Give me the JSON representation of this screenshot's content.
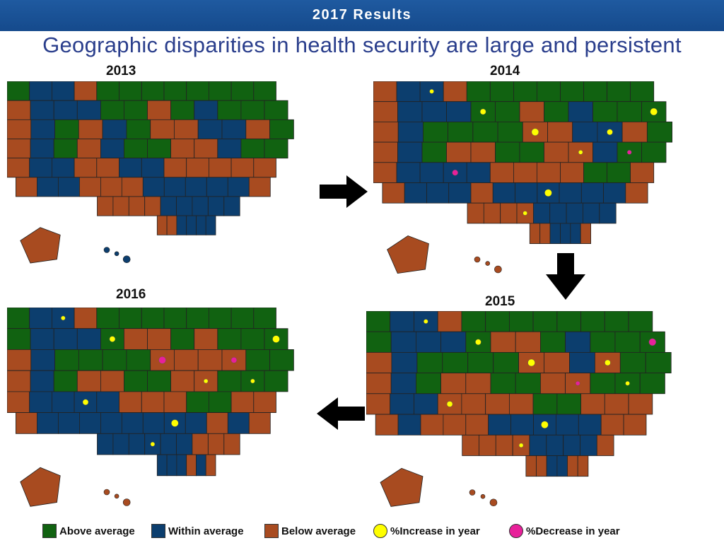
{
  "header": {
    "title": "2017 Results"
  },
  "subtitle": "Geographic disparities in health security are large and persistent",
  "colors": {
    "above": "#116211",
    "within": "#0c3e6e",
    "below": "#a84b20",
    "increase": "#ffff00",
    "decrease": "#e8209a"
  },
  "panels": [
    {
      "year": "2013",
      "grid": [
        [
          "G",
          "B",
          "B",
          "N",
          "G",
          "G",
          "G",
          "G",
          "G",
          "G",
          "G",
          "G"
        ],
        [
          "N",
          "B",
          "B",
          "B",
          "G",
          "G",
          "N",
          "G",
          "B",
          "G",
          "G",
          "G"
        ],
        [
          "N",
          "B",
          "G",
          "N",
          "B",
          "G",
          "N",
          "N",
          "B",
          "B",
          "N",
          "G"
        ],
        [
          "N",
          "B",
          "G",
          "N",
          "B",
          "G",
          "G",
          "N",
          "N",
          "B",
          "G",
          "G"
        ],
        [
          "N",
          "B",
          "B",
          "N",
          "N",
          "B",
          "B",
          "N",
          "N",
          "N",
          "N",
          "N"
        ],
        [
          "N",
          "B",
          "B",
          "N",
          "N",
          "N",
          "B",
          "B",
          "B",
          "B",
          "B",
          "N"
        ],
        [
          "",
          "",
          "N",
          "N",
          "N",
          "N",
          "B",
          "B",
          "B",
          "B",
          "B",
          ""
        ],
        [
          "",
          "",
          "",
          "",
          "N",
          "N",
          "B",
          "B",
          "B",
          "B",
          "",
          ""
        ]
      ]
    },
    {
      "year": "2014",
      "grid": [
        [
          "N",
          "B",
          "B",
          "N",
          "G",
          "G",
          "G",
          "G",
          "G",
          "G",
          "G",
          "G"
        ],
        [
          "N",
          "B",
          "B",
          "B",
          "G",
          "G",
          "N",
          "G",
          "B",
          "G",
          "G",
          "G"
        ],
        [
          "N",
          "B",
          "G",
          "G",
          "G",
          "G",
          "N",
          "N",
          "B",
          "B",
          "N",
          "G"
        ],
        [
          "N",
          "B",
          "G",
          "N",
          "N",
          "G",
          "G",
          "N",
          "N",
          "B",
          "G",
          "G"
        ],
        [
          "N",
          "B",
          "B",
          "B",
          "B",
          "N",
          "N",
          "N",
          "N",
          "G",
          "G",
          "N"
        ],
        [
          "N",
          "B",
          "B",
          "B",
          "N",
          "B",
          "B",
          "B",
          "B",
          "B",
          "B",
          "N"
        ],
        [
          "",
          "",
          "N",
          "N",
          "N",
          "N",
          "B",
          "B",
          "B",
          "B",
          "B",
          ""
        ],
        [
          "",
          "",
          "",
          "",
          "N",
          "N",
          "B",
          "B",
          "B",
          "N",
          "",
          ""
        ]
      ]
    },
    {
      "year": "2015",
      "grid": [
        [
          "G",
          "B",
          "B",
          "N",
          "G",
          "G",
          "G",
          "G",
          "G",
          "G",
          "G",
          "G"
        ],
        [
          "G",
          "B",
          "B",
          "B",
          "G",
          "N",
          "N",
          "G",
          "B",
          "G",
          "G",
          "G"
        ],
        [
          "N",
          "B",
          "G",
          "G",
          "G",
          "G",
          "N",
          "N",
          "B",
          "N",
          "G",
          "G"
        ],
        [
          "N",
          "B",
          "G",
          "N",
          "N",
          "G",
          "G",
          "N",
          "N",
          "G",
          "G",
          "G"
        ],
        [
          "N",
          "B",
          "B",
          "N",
          "N",
          "N",
          "N",
          "G",
          "G",
          "N",
          "N",
          "N"
        ],
        [
          "N",
          "B",
          "N",
          "N",
          "N",
          "B",
          "B",
          "B",
          "B",
          "B",
          "N",
          "N"
        ],
        [
          "",
          "",
          "N",
          "N",
          "N",
          "N",
          "B",
          "B",
          "B",
          "B",
          "N",
          ""
        ],
        [
          "",
          "",
          "",
          "",
          "N",
          "N",
          "B",
          "B",
          "N",
          "N",
          "",
          ""
        ]
      ]
    },
    {
      "year": "2016",
      "grid": [
        [
          "G",
          "B",
          "B",
          "N",
          "G",
          "G",
          "G",
          "G",
          "G",
          "G",
          "G",
          "G"
        ],
        [
          "G",
          "B",
          "B",
          "B",
          "G",
          "N",
          "N",
          "G",
          "N",
          "G",
          "G",
          "G"
        ],
        [
          "N",
          "B",
          "G",
          "G",
          "G",
          "G",
          "N",
          "N",
          "N",
          "N",
          "G",
          "G"
        ],
        [
          "N",
          "B",
          "G",
          "N",
          "N",
          "G",
          "G",
          "N",
          "N",
          "G",
          "G",
          "G"
        ],
        [
          "N",
          "B",
          "B",
          "B",
          "B",
          "N",
          "N",
          "N",
          "G",
          "G",
          "N",
          "N"
        ],
        [
          "N",
          "B",
          "B",
          "B",
          "B",
          "B",
          "B",
          "B",
          "B",
          "N",
          "B",
          "N"
        ],
        [
          "",
          "",
          "B",
          "B",
          "B",
          "B",
          "B",
          "B",
          "N",
          "N",
          "N",
          ""
        ],
        [
          "",
          "",
          "",
          "",
          "B",
          "B",
          "B",
          "N",
          "B",
          "N",
          "",
          ""
        ]
      ]
    }
  ],
  "legend": [
    {
      "label": "Above average",
      "kind": "square",
      "color": "#116211"
    },
    {
      "label": "Within average",
      "kind": "square",
      "color": "#0c3e6e"
    },
    {
      "label": "Below average",
      "kind": "square",
      "color": "#a84b20"
    },
    {
      "label": "%Increase in year",
      "kind": "circle",
      "color": "#ffff00"
    },
    {
      "label": "%Decrease in year",
      "kind": "circle",
      "color": "#e8209a"
    }
  ]
}
